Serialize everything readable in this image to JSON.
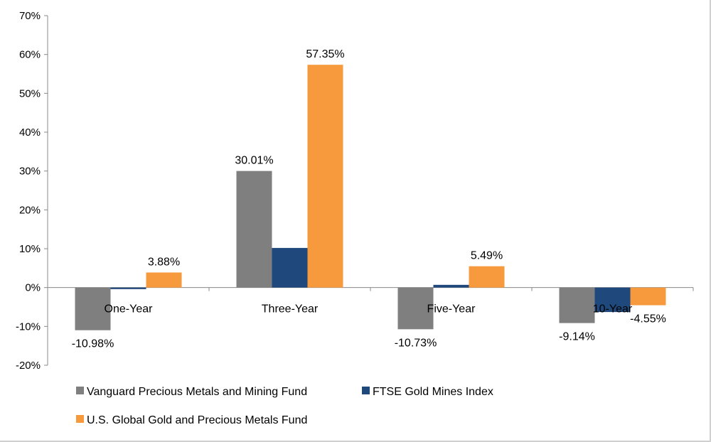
{
  "chart_data": {
    "type": "bar",
    "title": "",
    "xlabel": "",
    "ylabel": "",
    "categories": [
      "One-Year",
      "Three-Year",
      "Five-Year",
      "10-Year"
    ],
    "ylim": [
      -20,
      70
    ],
    "yticks": [
      -20,
      -10,
      0,
      10,
      20,
      30,
      40,
      50,
      60,
      70
    ],
    "ytick_labels": [
      "-20%",
      "-10%",
      "0%",
      "10%",
      "20%",
      "30%",
      "40%",
      "50%",
      "60%",
      "70%"
    ],
    "grid": false,
    "legend_position": "bottom",
    "series": [
      {
        "name": "Vanguard Precious Metals and Mining Fund",
        "color": "#7f7f7f",
        "values": [
          -10.98,
          30.01,
          -10.73,
          -9.14
        ],
        "labels": [
          "-10.98%",
          "30.01%",
          "-10.73%",
          "-9.14%"
        ]
      },
      {
        "name": "FTSE Gold Mines Index",
        "color": "#1f497d",
        "values": [
          -0.4,
          10.2,
          0.7,
          -6.3
        ],
        "labels": [
          "",
          "",
          "",
          ""
        ]
      },
      {
        "name": "U.S. Global Gold and Precious Metals Fund",
        "color": "#f79a3e",
        "values": [
          3.88,
          57.35,
          5.49,
          -4.55
        ],
        "labels": [
          "3.88%",
          "57.35%",
          "5.49%",
          "-4.55%"
        ]
      }
    ]
  }
}
